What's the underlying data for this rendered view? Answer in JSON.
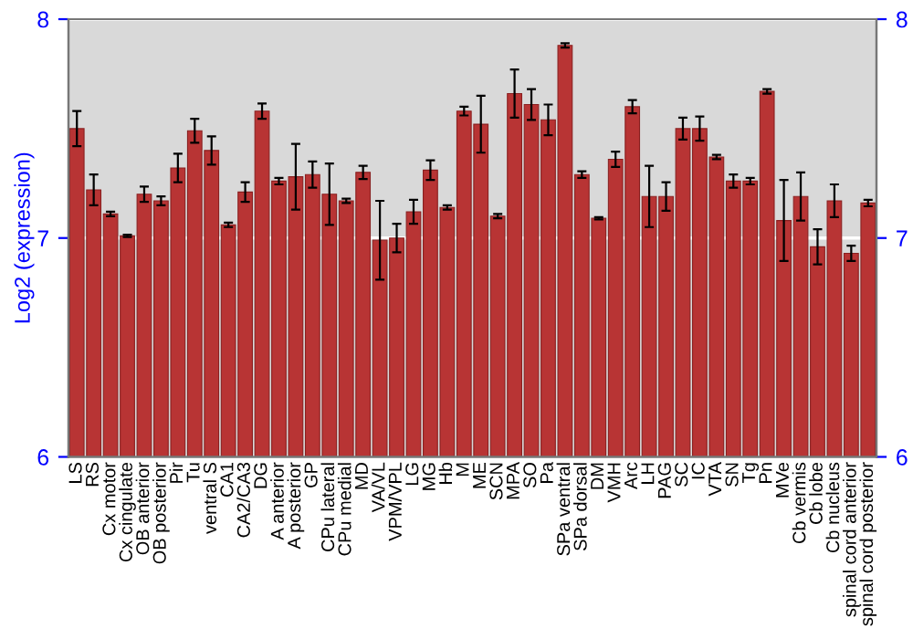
{
  "chart_data": {
    "type": "bar",
    "ylabel": "Log2 (expression)",
    "categories": [
      "LS",
      "RS",
      "Cx motor",
      "Cx cingulate",
      "OB anterior",
      "OB posterior",
      "Pir",
      "Tu",
      "ventral S",
      "CA1",
      "CA2/CA3",
      "DG",
      "A anterior",
      "A posterior",
      "GP",
      "CPu lateral",
      "CPu medial",
      "MD",
      "VA/VL",
      "VPM/VPL",
      "LG",
      "MG",
      "Hb",
      "M",
      "ME",
      "SCN",
      "MPA",
      "SO",
      "Pa",
      "SPa ventral",
      "SPa dorsal",
      "DM",
      "VMH",
      "Arc",
      "LH",
      "PAG",
      "SC",
      "IC",
      "VTA",
      "SN",
      "Tg",
      "Pn",
      "MVe",
      "Cb vermis",
      "Cb lobe",
      "Cb nucleus",
      "spinal cord anterior",
      "spinal cord posterior"
    ],
    "values": [
      7.5,
      7.22,
      7.11,
      7.01,
      7.2,
      7.17,
      7.32,
      7.49,
      7.4,
      7.06,
      7.21,
      7.58,
      7.26,
      7.28,
      7.29,
      7.2,
      7.17,
      7.3,
      6.99,
      7.0,
      7.12,
      7.31,
      7.14,
      7.58,
      7.52,
      7.1,
      7.66,
      7.61,
      7.54,
      7.88,
      7.29,
      7.09,
      7.36,
      7.6,
      7.19,
      7.19,
      7.5,
      7.5,
      7.37,
      7.26,
      7.26,
      7.67,
      7.08,
      7.19,
      6.96,
      7.17,
      6.93,
      7.16
    ],
    "errors": [
      0.08,
      0.07,
      0.01,
      0.005,
      0.035,
      0.02,
      0.065,
      0.055,
      0.065,
      0.01,
      0.045,
      0.035,
      0.015,
      0.15,
      0.06,
      0.14,
      0.01,
      0.03,
      0.18,
      0.065,
      0.055,
      0.045,
      0.01,
      0.02,
      0.13,
      0.01,
      0.11,
      0.07,
      0.07,
      0.01,
      0.015,
      0.005,
      0.035,
      0.03,
      0.14,
      0.065,
      0.05,
      0.055,
      0.01,
      0.03,
      0.015,
      0.01,
      0.185,
      0.11,
      0.08,
      0.075,
      0.035,
      0.015
    ],
    "color": "#b83434",
    "ylim": [
      6,
      8
    ],
    "yticks": [
      6,
      7,
      8
    ],
    "y2lim": [
      6,
      8
    ],
    "y2ticks": [
      6,
      7,
      8
    ],
    "grid": "y"
  }
}
